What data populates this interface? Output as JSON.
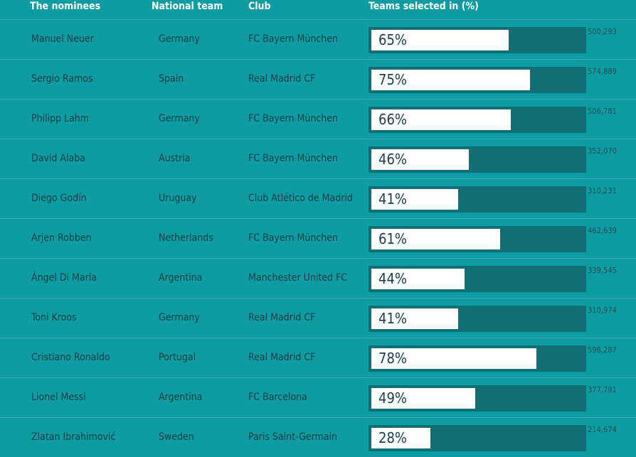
{
  "header": {
    "name": "The nominees",
    "team": "National team",
    "club": "Club",
    "percent": "Teams selected in (%)"
  },
  "table": {
    "rows": [
      {
        "name": "Manuel Neuer",
        "team": "Germany",
        "club": "FC Bayern München",
        "percent": 65,
        "percent_label": "65%",
        "votes": "500,293"
      },
      {
        "name": "Sergio Ramos",
        "team": "Spain",
        "club": "Real Madrid CF",
        "percent": 75,
        "percent_label": "75%",
        "votes": "574,889"
      },
      {
        "name": "Philipp Lahm",
        "team": "Germany",
        "club": "FC Bayern München",
        "percent": 66,
        "percent_label": "66%",
        "votes": "506,781"
      },
      {
        "name": "David Alaba",
        "team": "Austria",
        "club": "FC Bayern München",
        "percent": 46,
        "percent_label": "46%",
        "votes": "352,070"
      },
      {
        "name": "Diego Godín",
        "team": "Uruguay",
        "club": "Club Atlético de Madrid",
        "percent": 41,
        "percent_label": "41%",
        "votes": "310,231"
      },
      {
        "name": "Arjen Robben",
        "team": "Netherlands",
        "club": "FC Bayern München",
        "percent": 61,
        "percent_label": "61%",
        "votes": "462,639"
      },
      {
        "name": "Ángel Di María",
        "team": "Argentina",
        "club": "Manchester United FC",
        "percent": 44,
        "percent_label": "44%",
        "votes": "339,545"
      },
      {
        "name": "Toni Kroos",
        "team": "Germany",
        "club": "Real Madrid CF",
        "percent": 41,
        "percent_label": "41%",
        "votes": "310,974"
      },
      {
        "name": "Cristiano Ronaldo",
        "team": "Portugal",
        "club": "Real Madrid CF",
        "percent": 78,
        "percent_label": "78%",
        "votes": "598,287"
      },
      {
        "name": "Lionel Messi",
        "team": "Argentina",
        "club": "FC Barcelona",
        "percent": 49,
        "percent_label": "49%",
        "votes": "377,791"
      },
      {
        "name": "Zlatan Ibrahimović",
        "team": "Sweden",
        "club": "Paris Saint-Germain",
        "percent": 28,
        "percent_label": "28%",
        "votes": "214,674"
      }
    ]
  }
}
